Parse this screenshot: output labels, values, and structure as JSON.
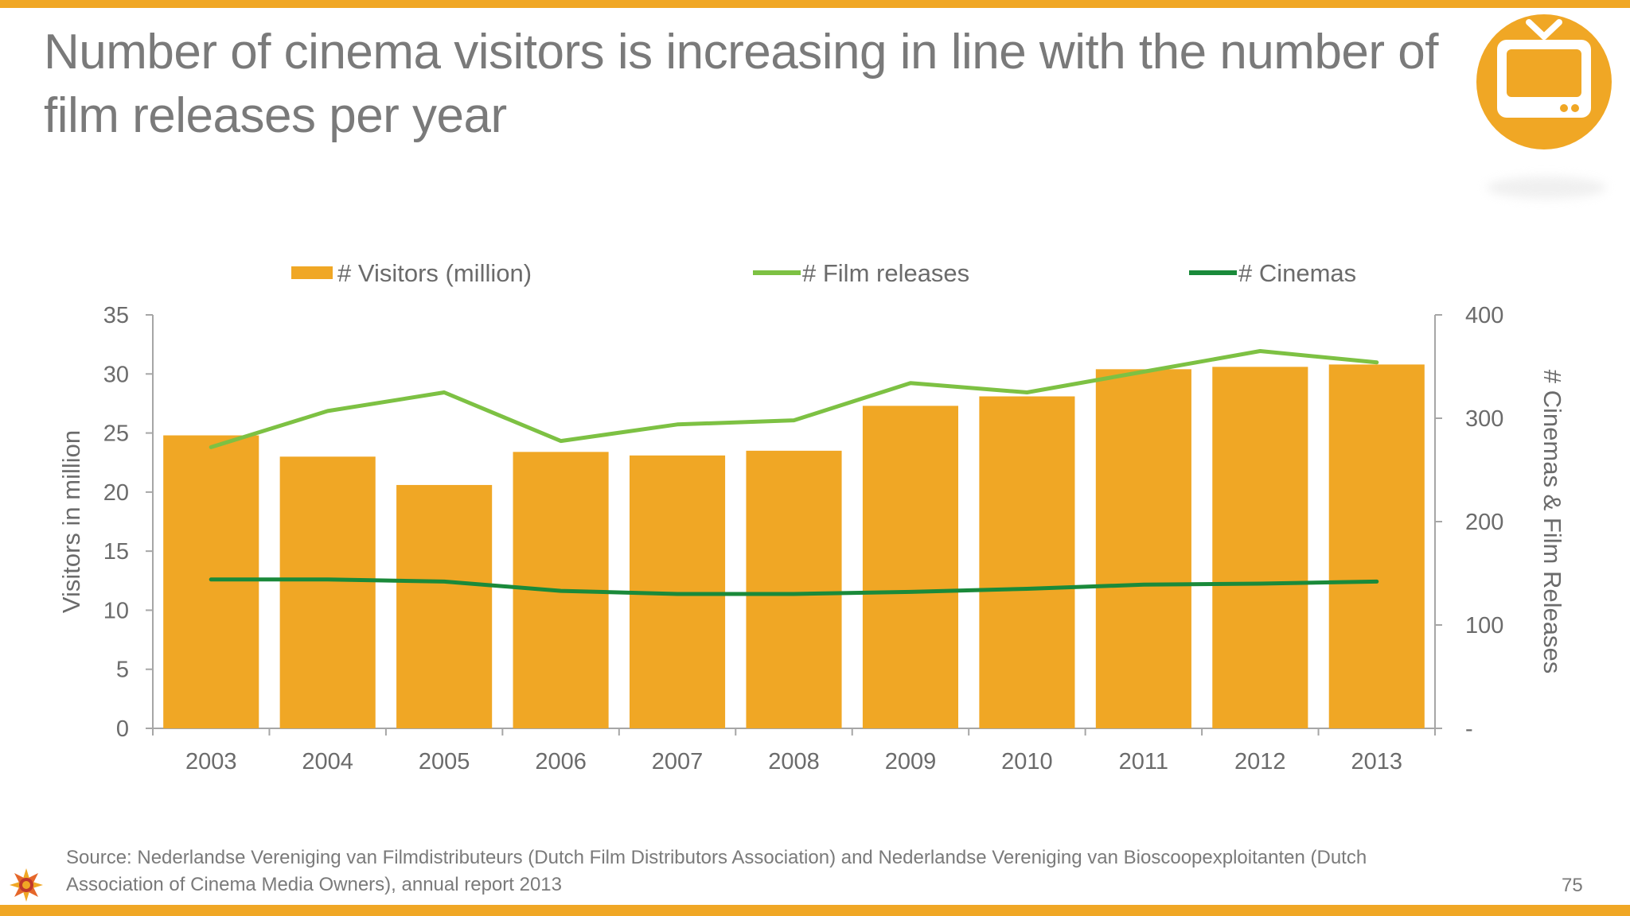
{
  "slide": {
    "title": "Number of cinema visitors is increasing in line with the number of film releases per year",
    "source": "Source: Nederlandse Vereniging van Filmdistributeurs (Dutch Film Distributors Association) and Nederlandse Vereniging van Bioscoopexploitanten (Dutch Association of Cinema Media Owners), annual report 2013",
    "page_number": "75",
    "badge_icon": "tv-icon",
    "logo_icon": "sun-logo-icon",
    "accent_color": "#f0a725"
  },
  "chart_data": {
    "type": "bar",
    "categories": [
      "2003",
      "2004",
      "2005",
      "2006",
      "2007",
      "2008",
      "2009",
      "2010",
      "2011",
      "2012",
      "2013"
    ],
    "xlabel": "",
    "ylabel": "Visitors in million",
    "y2label": "# Cinemas & Film Releases",
    "ylim": [
      0,
      35
    ],
    "y2lim": [
      0,
      400
    ],
    "yticks": [
      "0",
      "5",
      "10",
      "15",
      "20",
      "25",
      "30",
      "35"
    ],
    "y2ticks": [
      "-",
      "100",
      "200",
      "300",
      "400"
    ],
    "legend_position": "top",
    "grid": false,
    "series": [
      {
        "name": "# Visitors (million)",
        "type": "bar",
        "axis": "left",
        "color": "#f0a725",
        "values": [
          24.8,
          23.0,
          20.6,
          23.4,
          23.1,
          23.5,
          27.3,
          28.1,
          30.4,
          30.6,
          30.8
        ]
      },
      {
        "name": "# Film releases",
        "type": "line",
        "axis": "right",
        "color": "#7dc143",
        "values": [
          272,
          307,
          325,
          278,
          294,
          298,
          334,
          325,
          345,
          365,
          354
        ]
      },
      {
        "name": "# Cinemas",
        "type": "line",
        "axis": "right",
        "color": "#1a8a3a",
        "values": [
          144,
          144,
          142,
          133,
          130,
          130,
          132,
          135,
          139,
          140,
          142
        ]
      }
    ]
  }
}
